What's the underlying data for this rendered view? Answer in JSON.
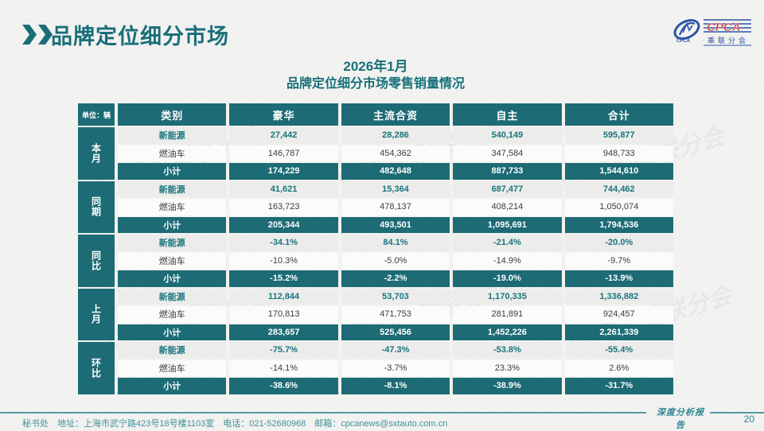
{
  "page": {
    "title": "品牌定位细分市场",
    "subtitle_line1": "2026年1月",
    "subtitle_line2": "品牌定位细分市场零售销量情况",
    "page_number": "20",
    "footer_info": "秘书处　地址：上海市武宁路423号18号楼1103室　电话：021-52680968　邮箱：cpcanews@sxtauto.com.cn",
    "footer_report_label": "深度分析报告"
  },
  "logo": {
    "name": "CPCA",
    "subname": "乘联分会",
    "small_text": "CPCA",
    "blue": "#2a55a5",
    "red": "#c03a47"
  },
  "colors": {
    "teal": "#1c6b75",
    "teal_text": "#187680",
    "row_gray": "#ececea",
    "row_white": "#fbfbfa"
  },
  "watermark_text": "CPCA 乘联分会",
  "table": {
    "unit_label": "单位：辆",
    "columns": [
      "类别",
      "豪华",
      "主流合资",
      "自主",
      "合计"
    ],
    "groups": [
      {
        "label": "本月",
        "rows": [
          {
            "type": "nev",
            "cat": "新能源",
            "values": [
              "27,442",
              "28,286",
              "540,149",
              "595,877"
            ]
          },
          {
            "type": "fuel",
            "cat": "燃油车",
            "values": [
              "146,787",
              "454,362",
              "347,584",
              "948,733"
            ]
          },
          {
            "type": "subtotal",
            "cat": "小计",
            "values": [
              "174,229",
              "482,648",
              "887,733",
              "1,544,610"
            ]
          }
        ]
      },
      {
        "label": "同期",
        "rows": [
          {
            "type": "nev",
            "cat": "新能源",
            "values": [
              "41,621",
              "15,364",
              "687,477",
              "744,462"
            ]
          },
          {
            "type": "fuel",
            "cat": "燃油车",
            "values": [
              "163,723",
              "478,137",
              "408,214",
              "1,050,074"
            ]
          },
          {
            "type": "subtotal",
            "cat": "小计",
            "values": [
              "205,344",
              "493,501",
              "1,095,691",
              "1,794,536"
            ]
          }
        ]
      },
      {
        "label": "同比",
        "rows": [
          {
            "type": "nev",
            "cat": "新能源",
            "values": [
              "-34.1%",
              "84.1%",
              "-21.4%",
              "-20.0%"
            ]
          },
          {
            "type": "fuel",
            "cat": "燃油车",
            "values": [
              "-10.3%",
              "-5.0%",
              "-14.9%",
              "-9.7%"
            ]
          },
          {
            "type": "subtotal",
            "cat": "小计",
            "values": [
              "-15.2%",
              "-2.2%",
              "-19.0%",
              "-13.9%"
            ]
          }
        ]
      },
      {
        "label": "上月",
        "rows": [
          {
            "type": "nev",
            "cat": "新能源",
            "values": [
              "112,844",
              "53,703",
              "1,170,335",
              "1,336,882"
            ]
          },
          {
            "type": "fuel",
            "cat": "燃油车",
            "values": [
              "170,813",
              "471,753",
              "281,891",
              "924,457"
            ]
          },
          {
            "type": "subtotal",
            "cat": "小计",
            "values": [
              "283,657",
              "525,456",
              "1,452,226",
              "2,261,339"
            ]
          }
        ]
      },
      {
        "label": "环比",
        "rows": [
          {
            "type": "nev",
            "cat": "新能源",
            "values": [
              "-75.7%",
              "-47.3%",
              "-53.8%",
              "-55.4%"
            ]
          },
          {
            "type": "fuel",
            "cat": "燃油车",
            "values": [
              "-14.1%",
              "-3.7%",
              "23.3%",
              "2.6%"
            ]
          },
          {
            "type": "subtotal",
            "cat": "小计",
            "values": [
              "-38.6%",
              "-8.1%",
              "-38.9%",
              "-31.7%"
            ]
          }
        ]
      }
    ]
  }
}
